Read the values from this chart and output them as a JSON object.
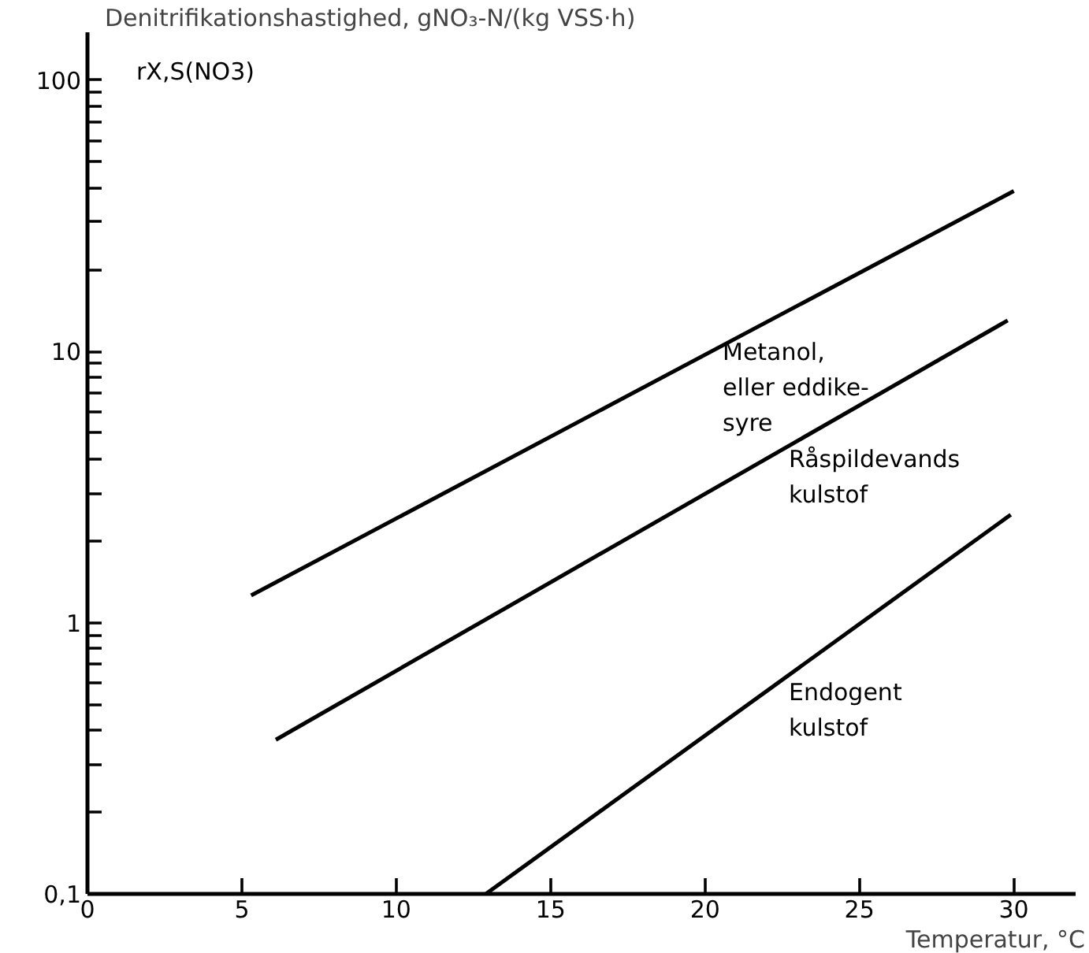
{
  "chart_data": {
    "type": "line",
    "xlabel": "Temperatur, °C",
    "log": "y",
    "grid": false,
    "line_style": "solid",
    "marker": "none",
    "xlim": [
      0,
      32
    ],
    "ylim": [
      0.1,
      150
    ],
    "xticks": [
      0,
      5,
      10,
      15,
      20,
      25,
      30
    ],
    "yticks": [
      {
        "value": 0.1,
        "label": "0,1"
      },
      {
        "value": 0.2,
        "label": null
      },
      {
        "value": 0.3,
        "label": null
      },
      {
        "value": 0.4,
        "label": null
      },
      {
        "value": 0.5,
        "label": null
      },
      {
        "value": 0.6,
        "label": null
      },
      {
        "value": 0.7,
        "label": null
      },
      {
        "value": 0.8,
        "label": null
      },
      {
        "value": 0.9,
        "label": null
      },
      1,
      {
        "value": 2,
        "label": null
      },
      {
        "value": 3,
        "label": null
      },
      {
        "value": 4,
        "label": null
      },
      {
        "value": 5,
        "label": null
      },
      {
        "value": 6,
        "label": null
      },
      {
        "value": 7,
        "label": null
      },
      {
        "value": 8,
        "label": null
      },
      {
        "value": 9,
        "label": null
      },
      10,
      {
        "value": 20,
        "label": null
      },
      {
        "value": 30,
        "label": null
      },
      {
        "value": 40,
        "label": null
      },
      {
        "value": 50,
        "label": null
      },
      {
        "value": 60,
        "label": null
      },
      {
        "value": 70,
        "label": null
      },
      {
        "value": 80,
        "label": null
      },
      {
        "value": 90,
        "label": null
      },
      100
    ],
    "series": [
      {
        "color": "#000000",
        "x": [
          5.3,
          30
        ],
        "values": [
          1.26,
          39
        ]
      },
      {
        "color": "#000000",
        "x": [
          6.1,
          29.8
        ],
        "values": [
          0.37,
          13
        ]
      },
      {
        "color": "#000000",
        "x": [
          12.9,
          29.9
        ],
        "values": [
          0.1,
          2.5
        ]
      }
    ],
    "annotations": [
      "Denitrifikationshastighed, gNO₃-N/(kg VSS·h)",
      "rX,S(NO3)",
      "Metanol,\neller eddike-\nsyre",
      "Råspildevands\nkulstof",
      "Endogent\nkulstof"
    ]
  }
}
